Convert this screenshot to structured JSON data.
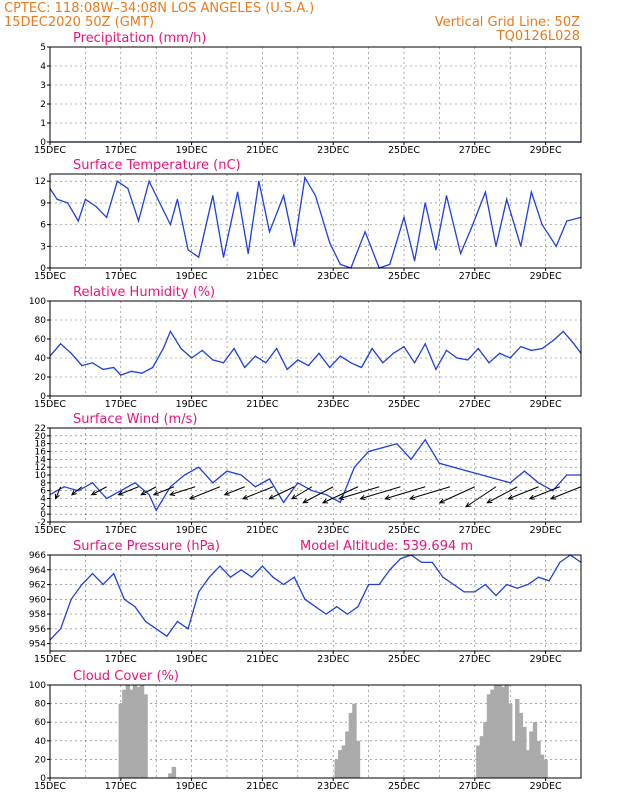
{
  "header": {
    "line1_left": "CPTEC:   118:08W–34:08N  LOS ANGELES (U.S.A.)",
    "line2_left": "15DEC2020 50Z (GMT)",
    "line2_right": "Vertical Grid Line: 50Z",
    "line3_right": "TQ0126L028"
  },
  "colors": {
    "header": "#e87a1e",
    "panel_title": "#e8147d",
    "series": "#1f3fe0",
    "cloud": "#aaaaaa"
  },
  "x_axis": {
    "ticks": [
      "15DEC",
      "17DEC",
      "19DEC",
      "21DEC",
      "23DEC",
      "25DEC",
      "27DEC",
      "29DEC"
    ],
    "range_days": [
      0,
      15
    ]
  },
  "panels": [
    {
      "key": "precip",
      "title": "Precipitation (mm/h)",
      "extra": "",
      "ylim": [
        0,
        5
      ],
      "yticks": [
        0,
        1,
        2,
        3,
        4,
        5
      ]
    },
    {
      "key": "temp",
      "title": "Surface Temperature (nC)",
      "extra": "",
      "ylim": [
        0,
        13
      ],
      "yticks": [
        0,
        3,
        6,
        9,
        12
      ]
    },
    {
      "key": "rh",
      "title": "Relative Humidity (%)",
      "extra": "",
      "ylim": [
        0,
        100
      ],
      "yticks": [
        0,
        20,
        40,
        60,
        80,
        100
      ]
    },
    {
      "key": "wind",
      "title": "Surface Wind (m/s)",
      "extra": "",
      "ylim": [
        -2,
        22
      ],
      "yticks": [
        -2,
        0,
        2,
        4,
        6,
        8,
        10,
        12,
        14,
        16,
        18,
        20,
        22
      ]
    },
    {
      "key": "pres",
      "title": "Surface Pressure (hPa)",
      "extra": "Model Altitude: 539.694 m",
      "ylim": [
        953,
        966
      ],
      "yticks": [
        954,
        956,
        958,
        960,
        962,
        964,
        966
      ]
    },
    {
      "key": "cloud",
      "title": "Cloud Cover (%)",
      "extra": "",
      "ylim": [
        0,
        100
      ],
      "yticks": [
        0,
        20,
        40,
        60,
        80,
        100
      ]
    }
  ],
  "chart_data": [
    {
      "type": "line",
      "title": "Precipitation (mm/h)",
      "ylim": [
        0,
        5
      ],
      "x": [
        0,
        3,
        6,
        9,
        12,
        13,
        15
      ],
      "values": [
        0,
        0,
        0,
        0,
        0,
        0,
        0
      ]
    },
    {
      "type": "line",
      "title": "Surface Temperature (nC)",
      "ylim": [
        0,
        13
      ],
      "x": [
        0,
        0.2,
        0.5,
        0.8,
        1.0,
        1.3,
        1.6,
        1.9,
        2.2,
        2.5,
        2.8,
        3.1,
        3.4,
        3.6,
        3.9,
        4.2,
        4.6,
        4.9,
        5.3,
        5.6,
        5.9,
        6.2,
        6.6,
        6.9,
        7.2,
        7.5,
        7.9,
        8.2,
        8.5,
        8.9,
        9.3,
        9.6,
        10.0,
        10.3,
        10.6,
        10.9,
        11.2,
        11.6,
        11.9,
        12.3,
        12.6,
        12.9,
        13.3,
        13.6,
        13.9,
        14.3,
        14.6,
        15.0
      ],
      "values": [
        11,
        9.5,
        9,
        6.5,
        9.5,
        8.5,
        7,
        12,
        11,
        6.5,
        12,
        9,
        6,
        9.5,
        2.5,
        1.5,
        10,
        1.5,
        10.5,
        2,
        12,
        5,
        10,
        3,
        12.5,
        10,
        3.5,
        0.5,
        0,
        5,
        0,
        0.5,
        7,
        1,
        9,
        2.5,
        10,
        2,
        5.5,
        10.5,
        3,
        9.5,
        3,
        10.5,
        6,
        3,
        6.5,
        7
      ]
    },
    {
      "type": "line",
      "title": "Relative Humidity (%)",
      "ylim": [
        0,
        100
      ],
      "x": [
        0,
        0.3,
        0.6,
        0.9,
        1.2,
        1.5,
        1.8,
        2.0,
        2.3,
        2.6,
        2.9,
        3.2,
        3.4,
        3.7,
        4.0,
        4.3,
        4.6,
        4.9,
        5.2,
        5.5,
        5.8,
        6.1,
        6.4,
        6.7,
        7.0,
        7.3,
        7.6,
        7.9,
        8.2,
        8.5,
        8.8,
        9.1,
        9.4,
        9.7,
        10.0,
        10.3,
        10.6,
        10.9,
        11.2,
        11.5,
        11.8,
        12.1,
        12.4,
        12.7,
        13.0,
        13.3,
        13.6,
        13.9,
        14.2,
        14.5,
        14.8,
        15.0
      ],
      "values": [
        42,
        55,
        45,
        32,
        35,
        28,
        30,
        22,
        26,
        24,
        30,
        50,
        68,
        50,
        40,
        48,
        38,
        35,
        50,
        30,
        42,
        35,
        50,
        28,
        38,
        32,
        45,
        30,
        42,
        35,
        30,
        50,
        35,
        45,
        52,
        35,
        55,
        28,
        48,
        40,
        38,
        50,
        35,
        45,
        40,
        52,
        48,
        50,
        58,
        68,
        55,
        45
      ]
    },
    {
      "type": "line",
      "title": "Surface Wind (m/s)",
      "ylim": [
        -2,
        22
      ],
      "x": [
        0,
        0.4,
        0.8,
        1.2,
        1.6,
        2.0,
        2.4,
        2.8,
        3.0,
        3.4,
        3.8,
        4.2,
        4.6,
        5.0,
        5.4,
        5.8,
        6.2,
        6.6,
        7.0,
        7.4,
        7.8,
        8.2,
        8.6,
        9.0,
        9.4,
        9.8,
        10.2,
        10.6,
        11.0,
        11.4,
        11.8,
        12.2,
        12.6,
        13.0,
        13.4,
        13.8,
        14.2,
        14.6,
        15.0
      ],
      "values": [
        5,
        7,
        6,
        8,
        4,
        6,
        8,
        5,
        1,
        7,
        10,
        12,
        8,
        11,
        10,
        7,
        9,
        3,
        8,
        6,
        5,
        3,
        12,
        16,
        17,
        18,
        14,
        19,
        13,
        12,
        11,
        10,
        9,
        8,
        11,
        8,
        6,
        10,
        10
      ]
    },
    {
      "type": "line",
      "title": "Surface Pressure (hPa)",
      "ylim": [
        953,
        966
      ],
      "x": [
        0,
        0.3,
        0.6,
        0.9,
        1.2,
        1.5,
        1.8,
        2.1,
        2.4,
        2.7,
        3.0,
        3.3,
        3.6,
        3.9,
        4.2,
        4.5,
        4.8,
        5.1,
        5.4,
        5.7,
        6.0,
        6.3,
        6.6,
        6.9,
        7.2,
        7.5,
        7.8,
        8.1,
        8.4,
        8.7,
        9.0,
        9.3,
        9.6,
        9.9,
        10.2,
        10.5,
        10.8,
        11.1,
        11.4,
        11.7,
        12.0,
        12.3,
        12.6,
        12.9,
        13.2,
        13.5,
        13.8,
        14.1,
        14.4,
        14.7,
        15.0
      ],
      "values": [
        954.5,
        956,
        960,
        962,
        963.5,
        962,
        963.5,
        960,
        959,
        957,
        956,
        955,
        957,
        956,
        961,
        963,
        964.5,
        963,
        964,
        963,
        964.5,
        963,
        962,
        963,
        960,
        959,
        958,
        959,
        958,
        959,
        962,
        962,
        964,
        965.5,
        966,
        965,
        965,
        963,
        962,
        961,
        961,
        962,
        960.5,
        962,
        961.5,
        962,
        963,
        962.5,
        965,
        966,
        965
      ]
    },
    {
      "type": "bar",
      "title": "Cloud Cover (%)",
      "ylim": [
        0,
        100
      ],
      "x": [
        2.0,
        2.1,
        2.2,
        2.3,
        2.4,
        2.5,
        2.6,
        2.7,
        3.4,
        3.5,
        8.1,
        8.2,
        8.3,
        8.4,
        8.5,
        8.6,
        8.7,
        12.1,
        12.2,
        12.3,
        12.4,
        12.5,
        12.6,
        12.7,
        12.8,
        12.9,
        13.0,
        13.1,
        13.2,
        13.3,
        13.4,
        13.5,
        13.6,
        13.7,
        13.8,
        13.9,
        14.0
      ],
      "values": [
        80,
        95,
        100,
        95,
        100,
        98,
        100,
        90,
        5,
        12,
        20,
        30,
        35,
        50,
        70,
        80,
        40,
        35,
        45,
        60,
        90,
        95,
        100,
        100,
        98,
        100,
        80,
        40,
        85,
        70,
        55,
        30,
        50,
        60,
        40,
        25,
        20
      ]
    },
    {
      "type": "wind-vectors",
      "title": "Surface Wind direction",
      "x": [
        0.3,
        0.9,
        1.6,
        2.5,
        3.0,
        3.5,
        4.1,
        4.8,
        5.5,
        6.3,
        6.9,
        7.4,
        8.0,
        8.7,
        9.3,
        9.9,
        10.6,
        11.3,
        12.0,
        12.6,
        13.2,
        13.8,
        14.4,
        15.0
      ],
      "u": [
        -1,
        -2,
        -3,
        -4,
        -3,
        -4,
        -5,
        -6,
        -4,
        -6,
        -5,
        -4,
        -6,
        -7,
        -8,
        -8,
        -8,
        -8,
        -7,
        -6,
        -6,
        -6,
        -6,
        -6
      ],
      "v": [
        -3,
        -2,
        -2,
        -2,
        -2,
        -2,
        -2,
        -3,
        -2,
        -3,
        -3,
        -3,
        -4,
        -4,
        -3,
        -3,
        -3,
        -3,
        -4,
        -5,
        -4,
        -3,
        -3,
        -3
      ]
    }
  ]
}
